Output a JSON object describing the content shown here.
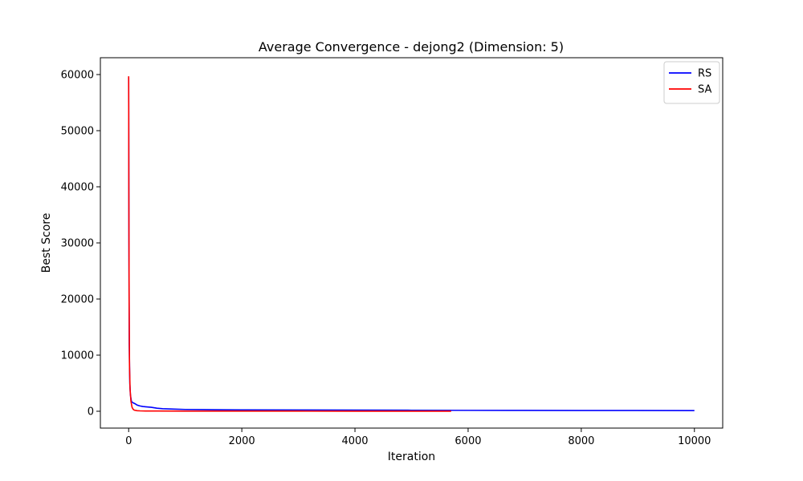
{
  "chart_data": {
    "type": "line",
    "title": "Average Convergence - dejong2 (Dimension: 5)",
    "xlabel": "Iteration",
    "ylabel": "Best Score",
    "xlim": [
      -500,
      10500
    ],
    "ylim": [
      -3000,
      63000
    ],
    "xticks": [
      0,
      2000,
      4000,
      6000,
      8000,
      10000
    ],
    "yticks": [
      0,
      10000,
      20000,
      30000,
      40000,
      50000,
      60000
    ],
    "grid": false,
    "legend": "top-right",
    "series": [
      {
        "name": "RS",
        "color": "#0000ff",
        "x": [
          0,
          5,
          10,
          20,
          30,
          50,
          80,
          120,
          150,
          200,
          250,
          300,
          400,
          500,
          600,
          800,
          1000,
          1500,
          2000,
          3000,
          4000,
          5000,
          6000,
          7000,
          8000,
          9000,
          10000
        ],
        "y": [
          59500,
          30000,
          12000,
          5000,
          3000,
          1700,
          1500,
          1300,
          1100,
          950,
          850,
          800,
          700,
          550,
          450,
          380,
          320,
          280,
          250,
          220,
          200,
          180,
          160,
          150,
          140,
          130,
          120
        ]
      },
      {
        "name": "SA",
        "color": "#ff0000",
        "x": [
          0,
          3,
          8,
          15,
          25,
          40,
          60,
          80,
          100,
          150,
          200,
          300,
          500,
          1000,
          2000,
          3000,
          4000,
          5000,
          5700
        ],
        "y": [
          59700,
          40000,
          20000,
          8000,
          4000,
          1800,
          700,
          350,
          200,
          100,
          70,
          50,
          40,
          30,
          25,
          20,
          15,
          12,
          10
        ]
      }
    ]
  }
}
